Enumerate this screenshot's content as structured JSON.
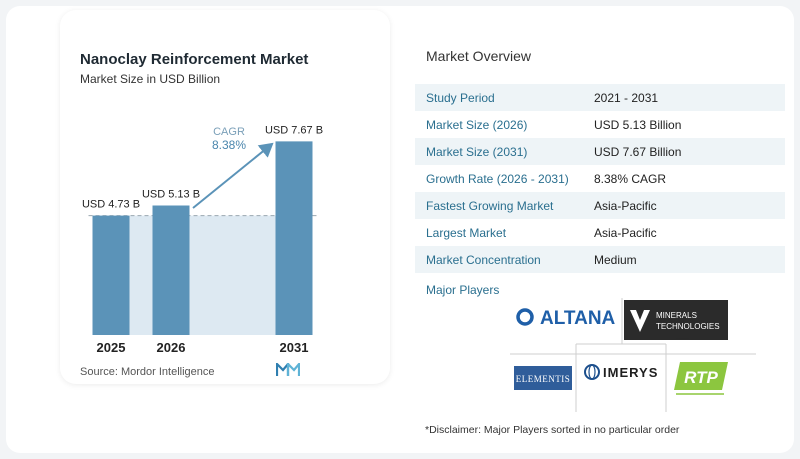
{
  "chart_data": {
    "type": "bar",
    "title": "Nanoclay Reinforcement Market",
    "subtitle": "Market Size in USD Billion",
    "categories": [
      "2025",
      "2026",
      "2031"
    ],
    "values": [
      4.73,
      5.13,
      7.67
    ],
    "data_labels": [
      "USD 4.73 B",
      "USD 5.13 B",
      "USD 7.67 B"
    ],
    "ylim": [
      0,
      8.2
    ],
    "cagr_label": "CAGR",
    "cagr_value": "8.38%",
    "bar_color": "#5b93b8",
    "band_color": "#dde9f2"
  },
  "source": "Source: Mordor Intelligence",
  "overview": {
    "title": "Market Overview",
    "rows": [
      {
        "label": "Study Period",
        "value": "2021 - 2031"
      },
      {
        "label": "Market Size (2026)",
        "value": "USD 5.13 Billion"
      },
      {
        "label": "Market Size (2031)",
        "value": "USD 7.67 Billion"
      },
      {
        "label": "Growth Rate (2026 - 2031)",
        "value": "8.38% CAGR"
      },
      {
        "label": "Fastest Growing Market",
        "value": "Asia-Pacific"
      },
      {
        "label": "Largest Market",
        "value": "Asia-Pacific"
      },
      {
        "label": "Market Concentration",
        "value": "Medium"
      }
    ],
    "players_label": "Major Players",
    "players": [
      "ALTANA",
      "MINERALS TECHNOLOGIES",
      "ELEMENTIS",
      "IMERYS",
      "RTP"
    ],
    "disclaimer": "*Disclaimer: Major Players sorted in no particular order"
  },
  "colors": {
    "label_teal": "#2a6f8f",
    "altana_blue": "#1f5fa8",
    "rtp_green": "#8cc63f"
  }
}
